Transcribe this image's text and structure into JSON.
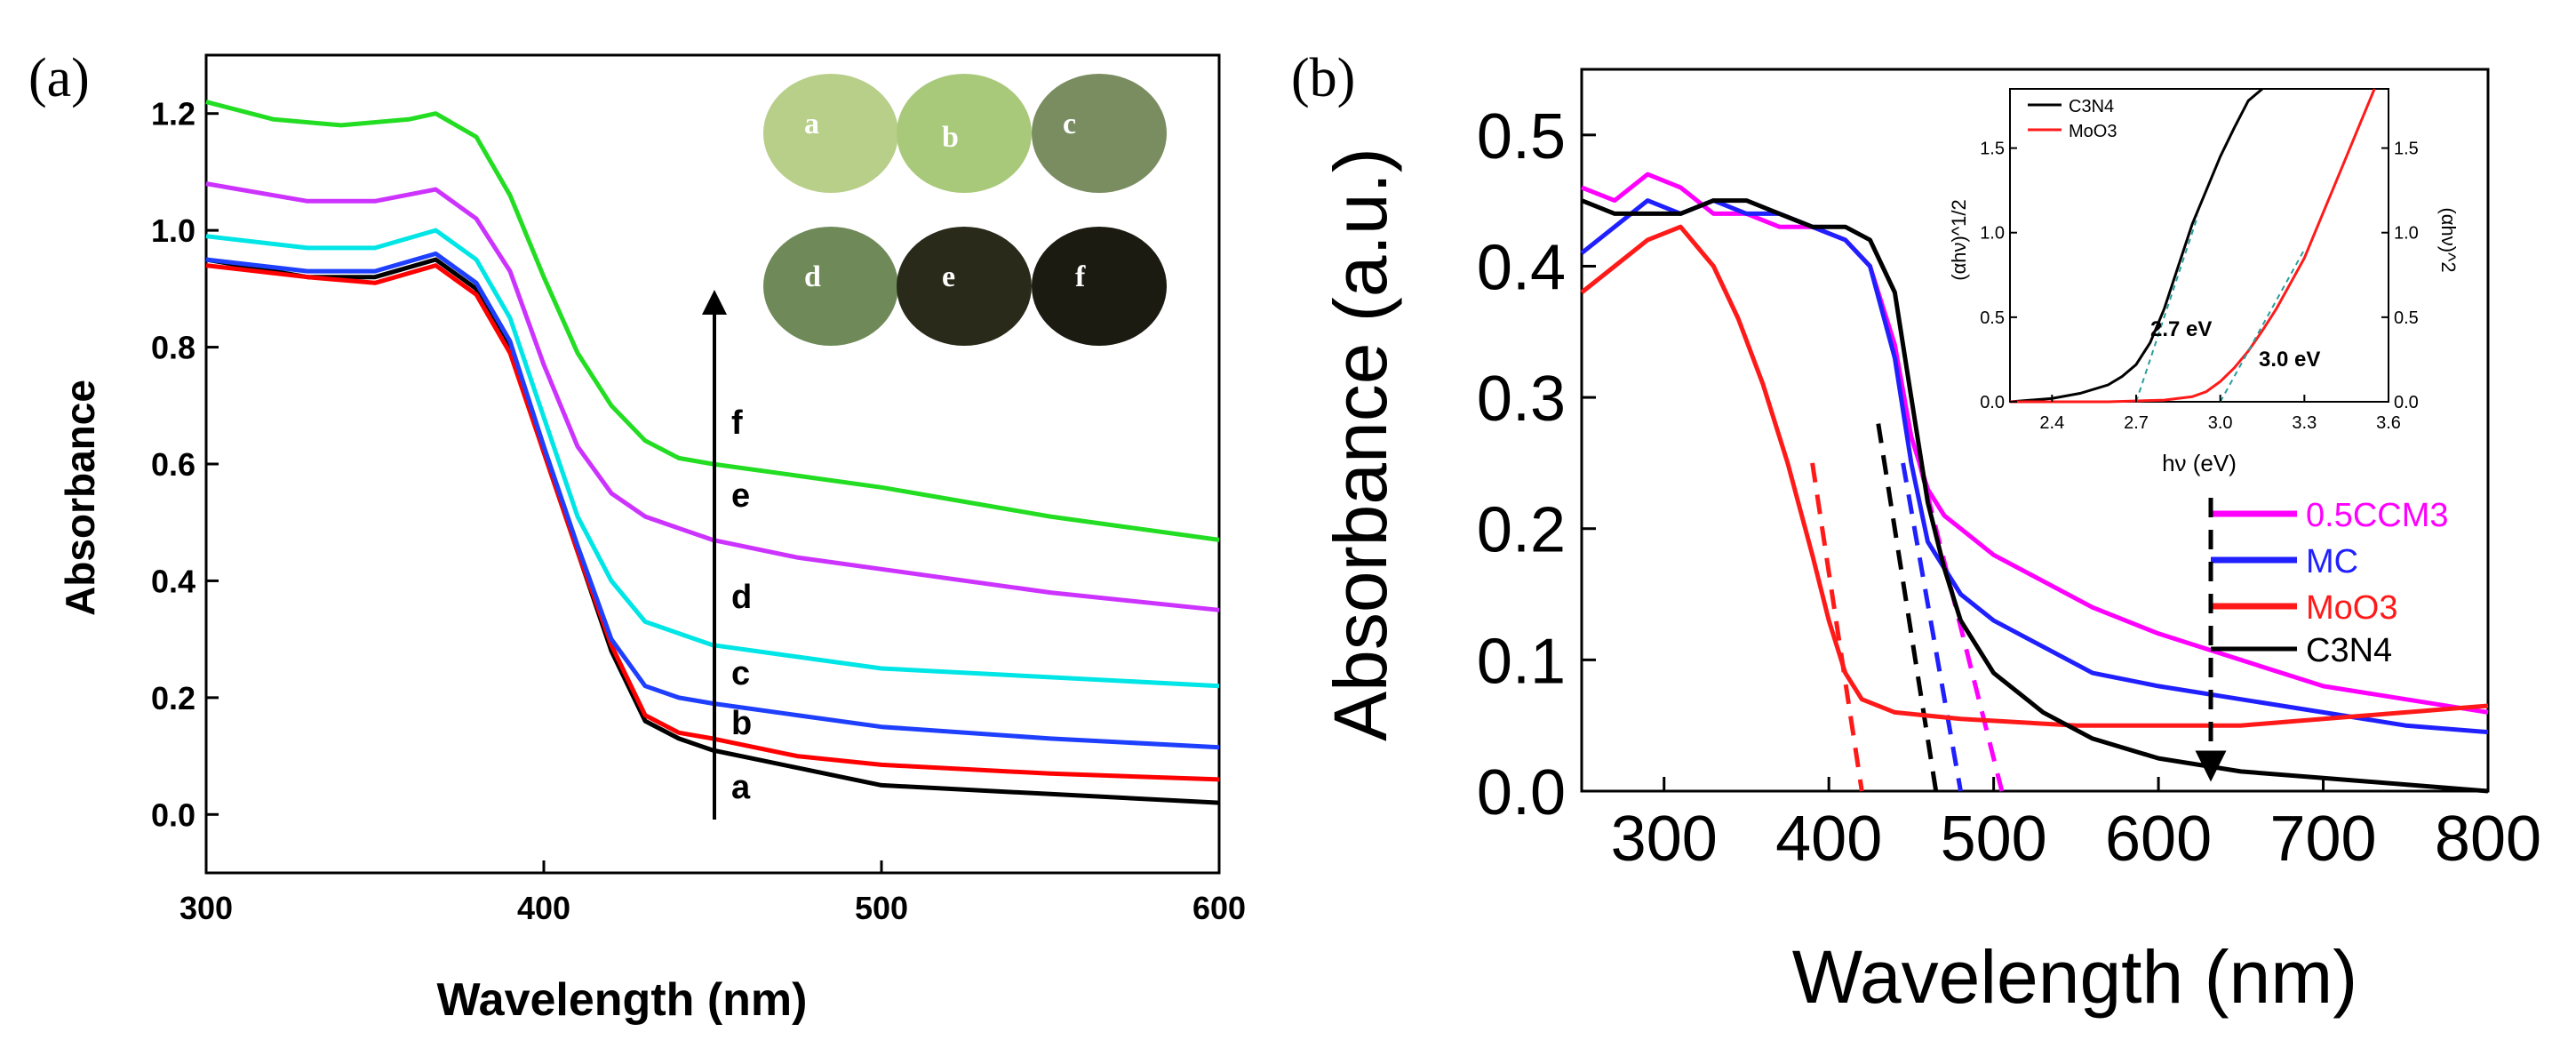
{
  "chart_data": [
    {
      "id": "a",
      "panel_label": "(a)",
      "type": "line",
      "xlabel": "Wavelength (nm)",
      "ylabel": "Absorbance",
      "xlim": [
        300,
        600
      ],
      "ylim": [
        -0.1,
        1.3
      ],
      "xticks": [
        "300",
        "400",
        "500",
        "600"
      ],
      "yticks": [
        "0.0",
        "0.2",
        "0.4",
        "0.6",
        "0.8",
        "1.0",
        "1.2"
      ],
      "arrow_direction": "up (a to f)",
      "series": [
        {
          "name": "a",
          "color": "#000000",
          "x": [
            300,
            330,
            350,
            368,
            380,
            390,
            400,
            410,
            420,
            430,
            440,
            450,
            475,
            500,
            550,
            600
          ],
          "values": [
            0.95,
            0.92,
            0.92,
            0.95,
            0.9,
            0.8,
            0.62,
            0.45,
            0.28,
            0.16,
            0.13,
            0.11,
            0.08,
            0.05,
            0.035,
            0.02
          ]
        },
        {
          "name": "b",
          "color": "#ff0000",
          "x": [
            300,
            330,
            350,
            368,
            380,
            390,
            400,
            410,
            420,
            430,
            440,
            450,
            475,
            500,
            550,
            600
          ],
          "values": [
            0.94,
            0.92,
            0.91,
            0.94,
            0.89,
            0.79,
            0.62,
            0.45,
            0.29,
            0.17,
            0.14,
            0.13,
            0.1,
            0.085,
            0.07,
            0.06
          ]
        },
        {
          "name": "c",
          "color": "#1f3fff",
          "x": [
            300,
            330,
            350,
            368,
            380,
            390,
            400,
            410,
            420,
            430,
            440,
            450,
            475,
            500,
            550,
            600
          ],
          "values": [
            0.95,
            0.93,
            0.93,
            0.96,
            0.91,
            0.81,
            0.63,
            0.46,
            0.3,
            0.22,
            0.2,
            0.19,
            0.17,
            0.15,
            0.13,
            0.115
          ]
        },
        {
          "name": "d",
          "color": "#00e5e5",
          "x": [
            300,
            330,
            350,
            368,
            380,
            390,
            400,
            410,
            420,
            430,
            440,
            450,
            475,
            500,
            550,
            600
          ],
          "values": [
            0.99,
            0.97,
            0.97,
            1.0,
            0.95,
            0.85,
            0.68,
            0.51,
            0.4,
            0.33,
            0.31,
            0.29,
            0.27,
            0.25,
            0.235,
            0.22
          ]
        },
        {
          "name": "e",
          "color": "#cc33ff",
          "x": [
            300,
            330,
            350,
            368,
            380,
            390,
            400,
            410,
            420,
            430,
            440,
            450,
            475,
            500,
            550,
            600
          ],
          "values": [
            1.08,
            1.05,
            1.05,
            1.07,
            1.02,
            0.93,
            0.77,
            0.63,
            0.55,
            0.51,
            0.49,
            0.47,
            0.44,
            0.42,
            0.38,
            0.35
          ]
        },
        {
          "name": "f",
          "color": "#22dd22",
          "x": [
            300,
            320,
            340,
            360,
            368,
            380,
            390,
            400,
            410,
            420,
            430,
            440,
            450,
            475,
            500,
            550,
            600
          ],
          "values": [
            1.22,
            1.19,
            1.18,
            1.19,
            1.2,
            1.16,
            1.06,
            0.92,
            0.79,
            0.7,
            0.64,
            0.61,
            0.6,
            0.58,
            0.56,
            0.51,
            0.47
          ]
        }
      ],
      "curve_labels": [
        "a",
        "b",
        "c",
        "d",
        "e",
        "f"
      ],
      "photo_labels": [
        "a",
        "b",
        "c",
        "d",
        "e",
        "f"
      ],
      "photo_colors": [
        "#b8cf8a",
        "#a9c97a",
        "#7a8d61",
        "#6f8a58",
        "#2a2a1a",
        "#1c1b12"
      ]
    },
    {
      "id": "b",
      "panel_label": "(b)",
      "type": "line",
      "xlabel": "Wavelength (nm)",
      "ylabel": "Absorbance (a.u.)",
      "xlim": [
        250,
        800
      ],
      "ylim": [
        0.0,
        0.55
      ],
      "xticks": [
        "300",
        "400",
        "500",
        "600",
        "700",
        "800"
      ],
      "yticks": [
        "0.0",
        "0.1",
        "0.2",
        "0.3",
        "0.4",
        "0.5"
      ],
      "series": [
        {
          "name": "0.5CCM3",
          "color": "#ff00ff",
          "x": [
            250,
            270,
            290,
            310,
            330,
            350,
            370,
            390,
            410,
            425,
            440,
            450,
            460,
            470,
            480,
            500,
            530,
            560,
            600,
            650,
            700,
            750,
            800
          ],
          "values": [
            0.46,
            0.45,
            0.47,
            0.46,
            0.44,
            0.44,
            0.43,
            0.43,
            0.42,
            0.4,
            0.34,
            0.27,
            0.23,
            0.21,
            0.2,
            0.18,
            0.16,
            0.14,
            0.12,
            0.1,
            0.08,
            0.07,
            0.06
          ]
        },
        {
          "name": "MC",
          "color": "#2020ff",
          "x": [
            250,
            270,
            290,
            310,
            330,
            350,
            370,
            390,
            410,
            425,
            440,
            450,
            460,
            470,
            480,
            500,
            530,
            560,
            600,
            650,
            700,
            750,
            800
          ],
          "values": [
            0.41,
            0.43,
            0.45,
            0.44,
            0.45,
            0.44,
            0.44,
            0.43,
            0.42,
            0.4,
            0.33,
            0.25,
            0.19,
            0.17,
            0.15,
            0.13,
            0.11,
            0.09,
            0.08,
            0.07,
            0.06,
            0.05,
            0.045
          ]
        },
        {
          "name": "MoO3",
          "color": "#ff1a1a",
          "x": [
            250,
            270,
            290,
            310,
            330,
            345,
            360,
            375,
            390,
            400,
            410,
            420,
            440,
            480,
            550,
            600,
            650,
            700,
            750,
            800
          ],
          "values": [
            0.38,
            0.4,
            0.42,
            0.43,
            0.4,
            0.36,
            0.31,
            0.25,
            0.18,
            0.13,
            0.09,
            0.07,
            0.06,
            0.055,
            0.05,
            0.05,
            0.05,
            0.055,
            0.06,
            0.065
          ]
        },
        {
          "name": "C3N4",
          "color": "#000000",
          "x": [
            250,
            270,
            290,
            310,
            330,
            350,
            370,
            390,
            410,
            425,
            440,
            450,
            460,
            470,
            480,
            500,
            530,
            560,
            600,
            650,
            700,
            750,
            800
          ],
          "values": [
            0.45,
            0.44,
            0.44,
            0.44,
            0.45,
            0.45,
            0.44,
            0.43,
            0.43,
            0.42,
            0.38,
            0.3,
            0.22,
            0.17,
            0.13,
            0.09,
            0.06,
            0.04,
            0.025,
            0.015,
            0.01,
            0.005,
            0.0
          ]
        }
      ],
      "tangent_lines": [
        {
          "color": "#ff1a1a",
          "x": [
            390,
            420
          ],
          "values": [
            0.25,
            0.0
          ]
        },
        {
          "color": "#000000",
          "x": [
            430,
            465
          ],
          "values": [
            0.28,
            0.0
          ]
        },
        {
          "color": "#2020ff",
          "x": [
            445,
            480
          ],
          "values": [
            0.25,
            0.0
          ]
        },
        {
          "color": "#ff00ff",
          "x": [
            455,
            505
          ],
          "values": [
            0.25,
            0.0
          ]
        }
      ],
      "legend": [
        "0.5CCM3",
        "MC",
        "MoO3",
        "C3N4"
      ],
      "inset": {
        "xlabel": "hν (eV)",
        "ylabel_left": "(αhν)^1/2",
        "ylabel_right": "(αhν)^2",
        "xlim": [
          2.25,
          3.6
        ],
        "ylim": [
          0,
          1.85
        ],
        "xticks": [
          "2.4",
          "2.7",
          "3.0",
          "3.3",
          "3.6"
        ],
        "yticks": [
          "0.0",
          "0.5",
          "1.0",
          "1.5"
        ],
        "legend": [
          "C3N4",
          "MoO3"
        ],
        "annotations": [
          "2.7 eV",
          "3.0 eV"
        ],
        "series": [
          {
            "name": "C3N4",
            "color": "#000000",
            "x": [
              2.25,
              2.4,
              2.5,
              2.6,
              2.65,
              2.7,
              2.75,
              2.8,
              2.85,
              2.9,
              2.95,
              3.0,
              3.05,
              3.1,
              3.15
            ],
            "values": [
              0.0,
              0.02,
              0.05,
              0.1,
              0.15,
              0.22,
              0.35,
              0.55,
              0.8,
              1.05,
              1.25,
              1.45,
              1.62,
              1.78,
              1.85
            ]
          },
          {
            "name": "MoO3",
            "color": "#ff1a1a",
            "x": [
              2.25,
              2.6,
              2.8,
              2.9,
              2.95,
              3.0,
              3.05,
              3.1,
              3.15,
              3.2,
              3.25,
              3.3,
              3.35,
              3.4,
              3.45,
              3.5,
              3.55
            ],
            "values": [
              0.0,
              0.0,
              0.01,
              0.03,
              0.06,
              0.12,
              0.2,
              0.3,
              0.42,
              0.55,
              0.7,
              0.85,
              1.05,
              1.25,
              1.45,
              1.65,
              1.85
            ]
          }
        ]
      }
    }
  ]
}
